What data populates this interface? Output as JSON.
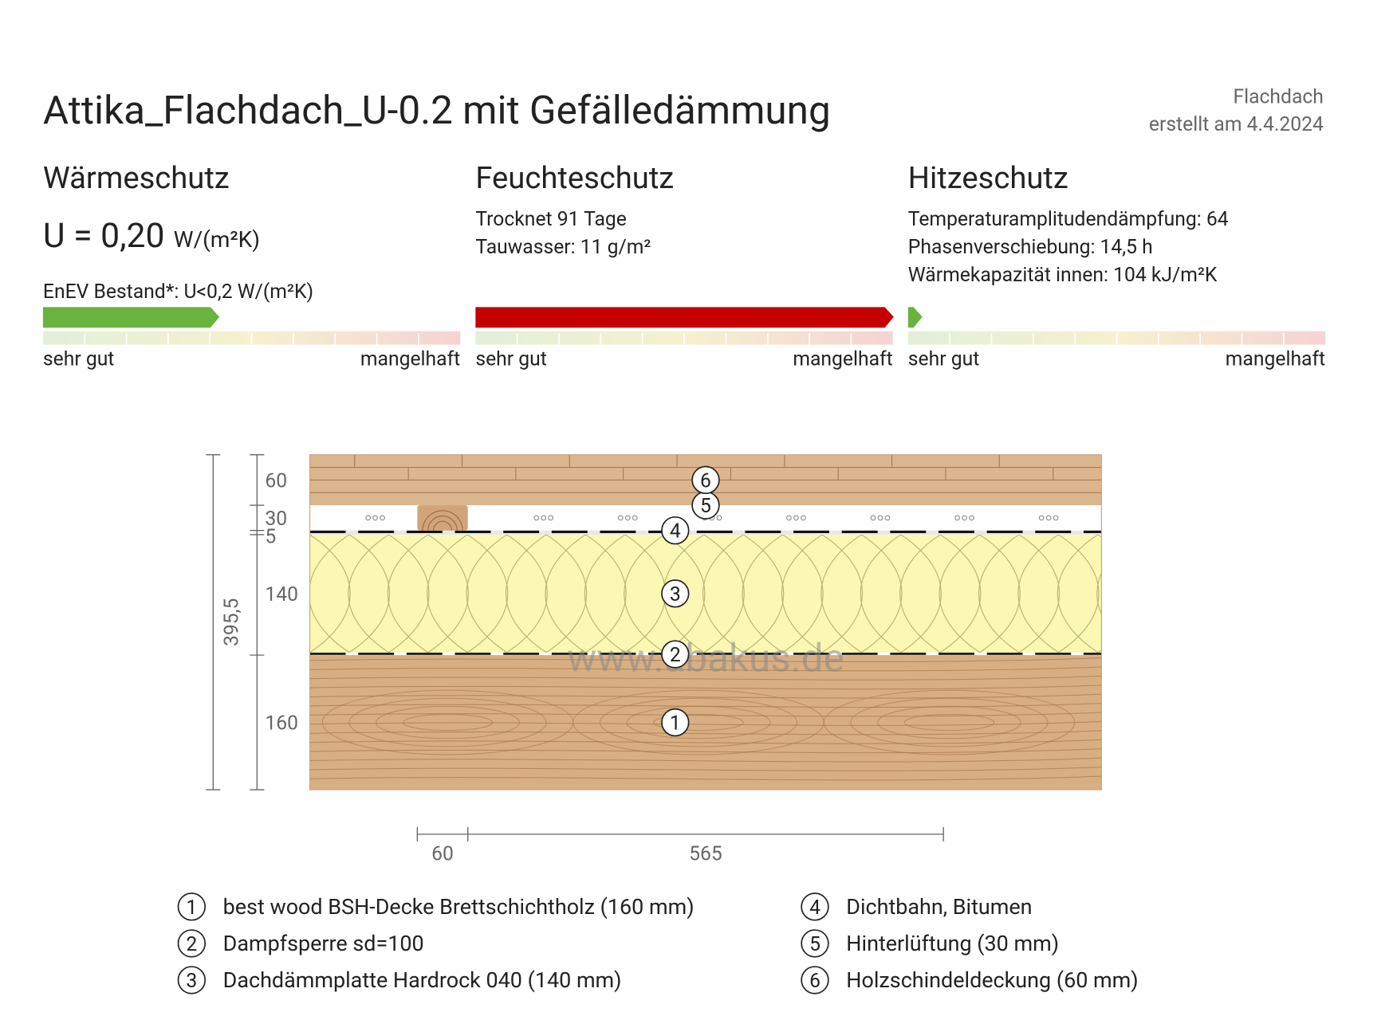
{
  "header": {
    "title": "Attika_Flachdach_U-0.2 mit Gefälledämmung",
    "category": "Flachdach",
    "created": "erstellt am 4.4.2024"
  },
  "sections": [
    {
      "heading": "Wärmeschutz",
      "u_value": "U = 0,20",
      "u_unit": "W/(m²K)",
      "lines": [
        "EnEV Bestand*: U<0,2 W/(m²K)"
      ],
      "scale_left": "sehr gut",
      "scale_right": "mangelhaft"
    },
    {
      "heading": "Feuchteschutz",
      "lines": [
        "Trocknet 91 Tage",
        "Tauwasser: 11 g/m²"
      ],
      "scale_left": "sehr gut",
      "scale_right": "mangelhaft"
    },
    {
      "heading": "Hitzeschutz",
      "lines": [
        "Temperaturamplitudendämpfung: 64",
        "Phasenverschiebung: 14,5 h",
        "Wärmekapazität innen: 104 kJ/m²K"
      ],
      "scale_left": "sehr gut",
      "scale_right": "mangelhaft"
    }
  ],
  "drawing": {
    "vertical": [
      60,
      30,
      5,
      140,
      160
    ],
    "total": "395,5",
    "horizontal": [
      60,
      565
    ],
    "watermark": "www.abakus.de"
  },
  "layers": [
    {
      "num": "1",
      "name": "best wood BSH-Decke Brettschichtholz (160 mm)"
    },
    {
      "num": "2",
      "name": "Dampfsperre sd=100"
    },
    {
      "num": "3",
      "name": "Dachdämmplatte Hardrock 040 (140 mm)"
    },
    {
      "num": "4",
      "name": "Dichtbahn, Bitumen"
    },
    {
      "num": "5",
      "name": "Hinterlüftung (30 mm)"
    },
    {
      "num": "6",
      "name": "Holzschindeldeckung (60 mm)"
    }
  ]
}
